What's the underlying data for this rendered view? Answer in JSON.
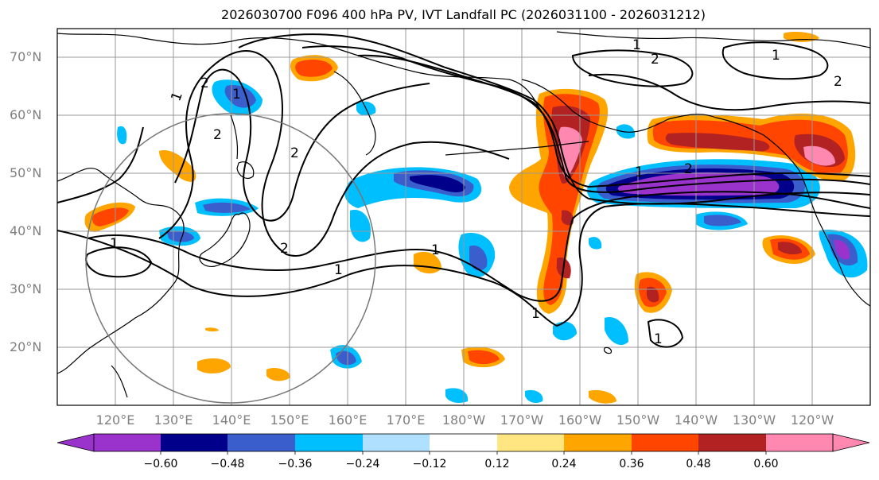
{
  "title": "2026030700 F096 400 hPa PV, IVT Landfall PC (2026031100 - 2026031212)",
  "lat_labels": [
    "70°N",
    "60°N",
    "50°N",
    "40°N",
    "30°N",
    "20°N"
  ],
  "lon_labels": [
    "120°E",
    "130°E",
    "140°E",
    "150°E",
    "160°E",
    "170°E",
    "180°W",
    "170°W",
    "160°W",
    "150°W",
    "140°W",
    "130°W",
    "120°W"
  ],
  "colorbar": {
    "ticks": [
      "−0.60",
      "−0.48",
      "−0.36",
      "−0.24",
      "−0.12",
      "0.12",
      "0.24",
      "0.36",
      "0.48",
      "0.60"
    ],
    "colors": [
      "#9933cc",
      "#00008b",
      "#3a5fcd",
      "#00bfff",
      "#b0e0ff",
      "#ffffff",
      "#ffe680",
      "#ffa500",
      "#ff4500",
      "#b22222",
      "#ff88b0"
    ]
  },
  "contour_labels": [
    "1",
    "2",
    "1",
    "2",
    "2",
    "2",
    "1",
    "1",
    "1",
    "2",
    "1",
    "1",
    "2",
    "1",
    "2",
    "1",
    "1"
  ],
  "colors": {
    "frame": "#000000",
    "grid": "#999999",
    "tick_label": "#808080",
    "circle": "#777777"
  }
}
